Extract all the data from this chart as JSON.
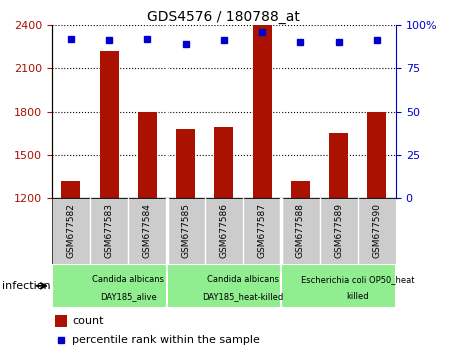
{
  "title": "GDS4576 / 180788_at",
  "samples": [
    "GSM677582",
    "GSM677583",
    "GSM677584",
    "GSM677585",
    "GSM677586",
    "GSM677587",
    "GSM677588",
    "GSM677589",
    "GSM677590"
  ],
  "counts": [
    1320,
    2220,
    1800,
    1680,
    1690,
    2400,
    1320,
    1650,
    1800
  ],
  "percentile_ranks": [
    92,
    91,
    92,
    89,
    91,
    96,
    90,
    90,
    91
  ],
  "ylim_left": [
    1200,
    2400
  ],
  "ylim_right": [
    0,
    100
  ],
  "yticks_left": [
    1200,
    1500,
    1800,
    2100,
    2400
  ],
  "yticks_right": [
    0,
    25,
    50,
    75,
    100
  ],
  "groups": [
    {
      "label1": "Candida albicans",
      "label2": "DAY185_alive",
      "start": 0,
      "end": 3,
      "color": "#90EE90"
    },
    {
      "label1": "Candida albicans",
      "label2": "DAY185_heat-killed",
      "start": 3,
      "end": 6,
      "color": "#90EE90"
    },
    {
      "label1": "Escherichia coli OP50_heat",
      "label2": "killed",
      "start": 6,
      "end": 9,
      "color": "#90EE90"
    }
  ],
  "infection_label": "infection",
  "bar_color": "#aa1100",
  "dot_color": "#0000cc",
  "bar_width": 0.5,
  "tick_bg_color": "#cccccc",
  "count_label": "count",
  "percentile_label": "percentile rank within the sample"
}
